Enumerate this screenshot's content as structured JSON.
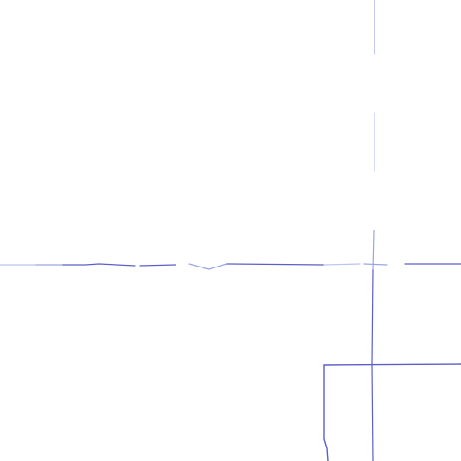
{
  "map": {
    "background_color": "#ffffff",
    "road_colors": {
      "primary": "#5b5fc7",
      "faded": "#9aa6e6",
      "light": "#b9c6ef"
    },
    "features": [
      "horizontal-road",
      "vertical-road",
      "boundary-line"
    ]
  }
}
